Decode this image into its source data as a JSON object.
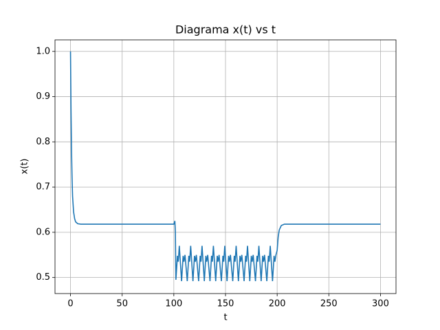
{
  "chart_data": {
    "type": "line",
    "title": "Diagrama x(t) vs t",
    "x_label": "t",
    "y_label": "x(t)",
    "x": [
      0,
      0.5,
      1,
      1.5,
      2,
      3,
      4,
      5,
      7,
      10,
      100,
      101,
      101.5,
      102,
      103.5,
      104.3,
      105.3,
      107.5,
      109,
      109.8,
      110.8,
      113,
      114.5,
      115.3,
      116.3,
      118.5,
      120,
      120.8,
      121.8,
      124,
      125.5,
      126.3,
      127.3,
      129.5,
      131,
      131.8,
      132.8,
      135,
      136.5,
      137.3,
      138.3,
      140.5,
      142,
      142.8,
      143.8,
      146,
      147.5,
      148.3,
      149.3,
      151.5,
      153,
      153.8,
      154.8,
      157,
      158.5,
      159.3,
      160.3,
      162.5,
      164,
      164.8,
      165.8,
      168,
      169.5,
      170.3,
      171.3,
      173.5,
      175,
      175.8,
      176.8,
      179,
      180.5,
      181.3,
      182.3,
      184.5,
      186,
      186.8,
      187.8,
      190,
      191.5,
      192.3,
      193.3,
      195.5,
      197,
      197.8,
      198.8,
      200,
      201,
      202,
      204,
      207,
      300
    ],
    "series": [
      {
        "name": "x(t)",
        "color": "#1f77b4",
        "values": [
          1.0,
          0.87,
          0.78,
          0.72,
          0.68,
          0.645,
          0.63,
          0.623,
          0.619,
          0.618,
          0.618,
          0.625,
          0.6,
          0.495,
          0.548,
          0.535,
          0.57,
          0.492,
          0.548,
          0.535,
          0.55,
          0.492,
          0.548,
          0.535,
          0.57,
          0.492,
          0.548,
          0.535,
          0.55,
          0.492,
          0.548,
          0.535,
          0.57,
          0.492,
          0.548,
          0.535,
          0.55,
          0.492,
          0.548,
          0.535,
          0.57,
          0.492,
          0.548,
          0.535,
          0.55,
          0.492,
          0.548,
          0.535,
          0.57,
          0.492,
          0.548,
          0.535,
          0.55,
          0.492,
          0.548,
          0.535,
          0.57,
          0.492,
          0.548,
          0.535,
          0.55,
          0.492,
          0.548,
          0.535,
          0.57,
          0.492,
          0.548,
          0.535,
          0.55,
          0.492,
          0.548,
          0.535,
          0.57,
          0.492,
          0.548,
          0.535,
          0.55,
          0.492,
          0.548,
          0.535,
          0.57,
          0.492,
          0.548,
          0.535,
          0.55,
          0.56,
          0.59,
          0.605,
          0.615,
          0.618,
          0.618
        ]
      }
    ],
    "xlim": [
      -15,
      315
    ],
    "xticks": [
      0,
      50,
      100,
      150,
      200,
      250,
      300
    ],
    "ylim": [
      0.4645,
      1.0255
    ],
    "yticks": [
      0.5,
      0.6,
      0.7,
      0.8,
      0.9,
      {
        "value": 1,
        "label": "1.0"
      }
    ],
    "grid": true
  }
}
